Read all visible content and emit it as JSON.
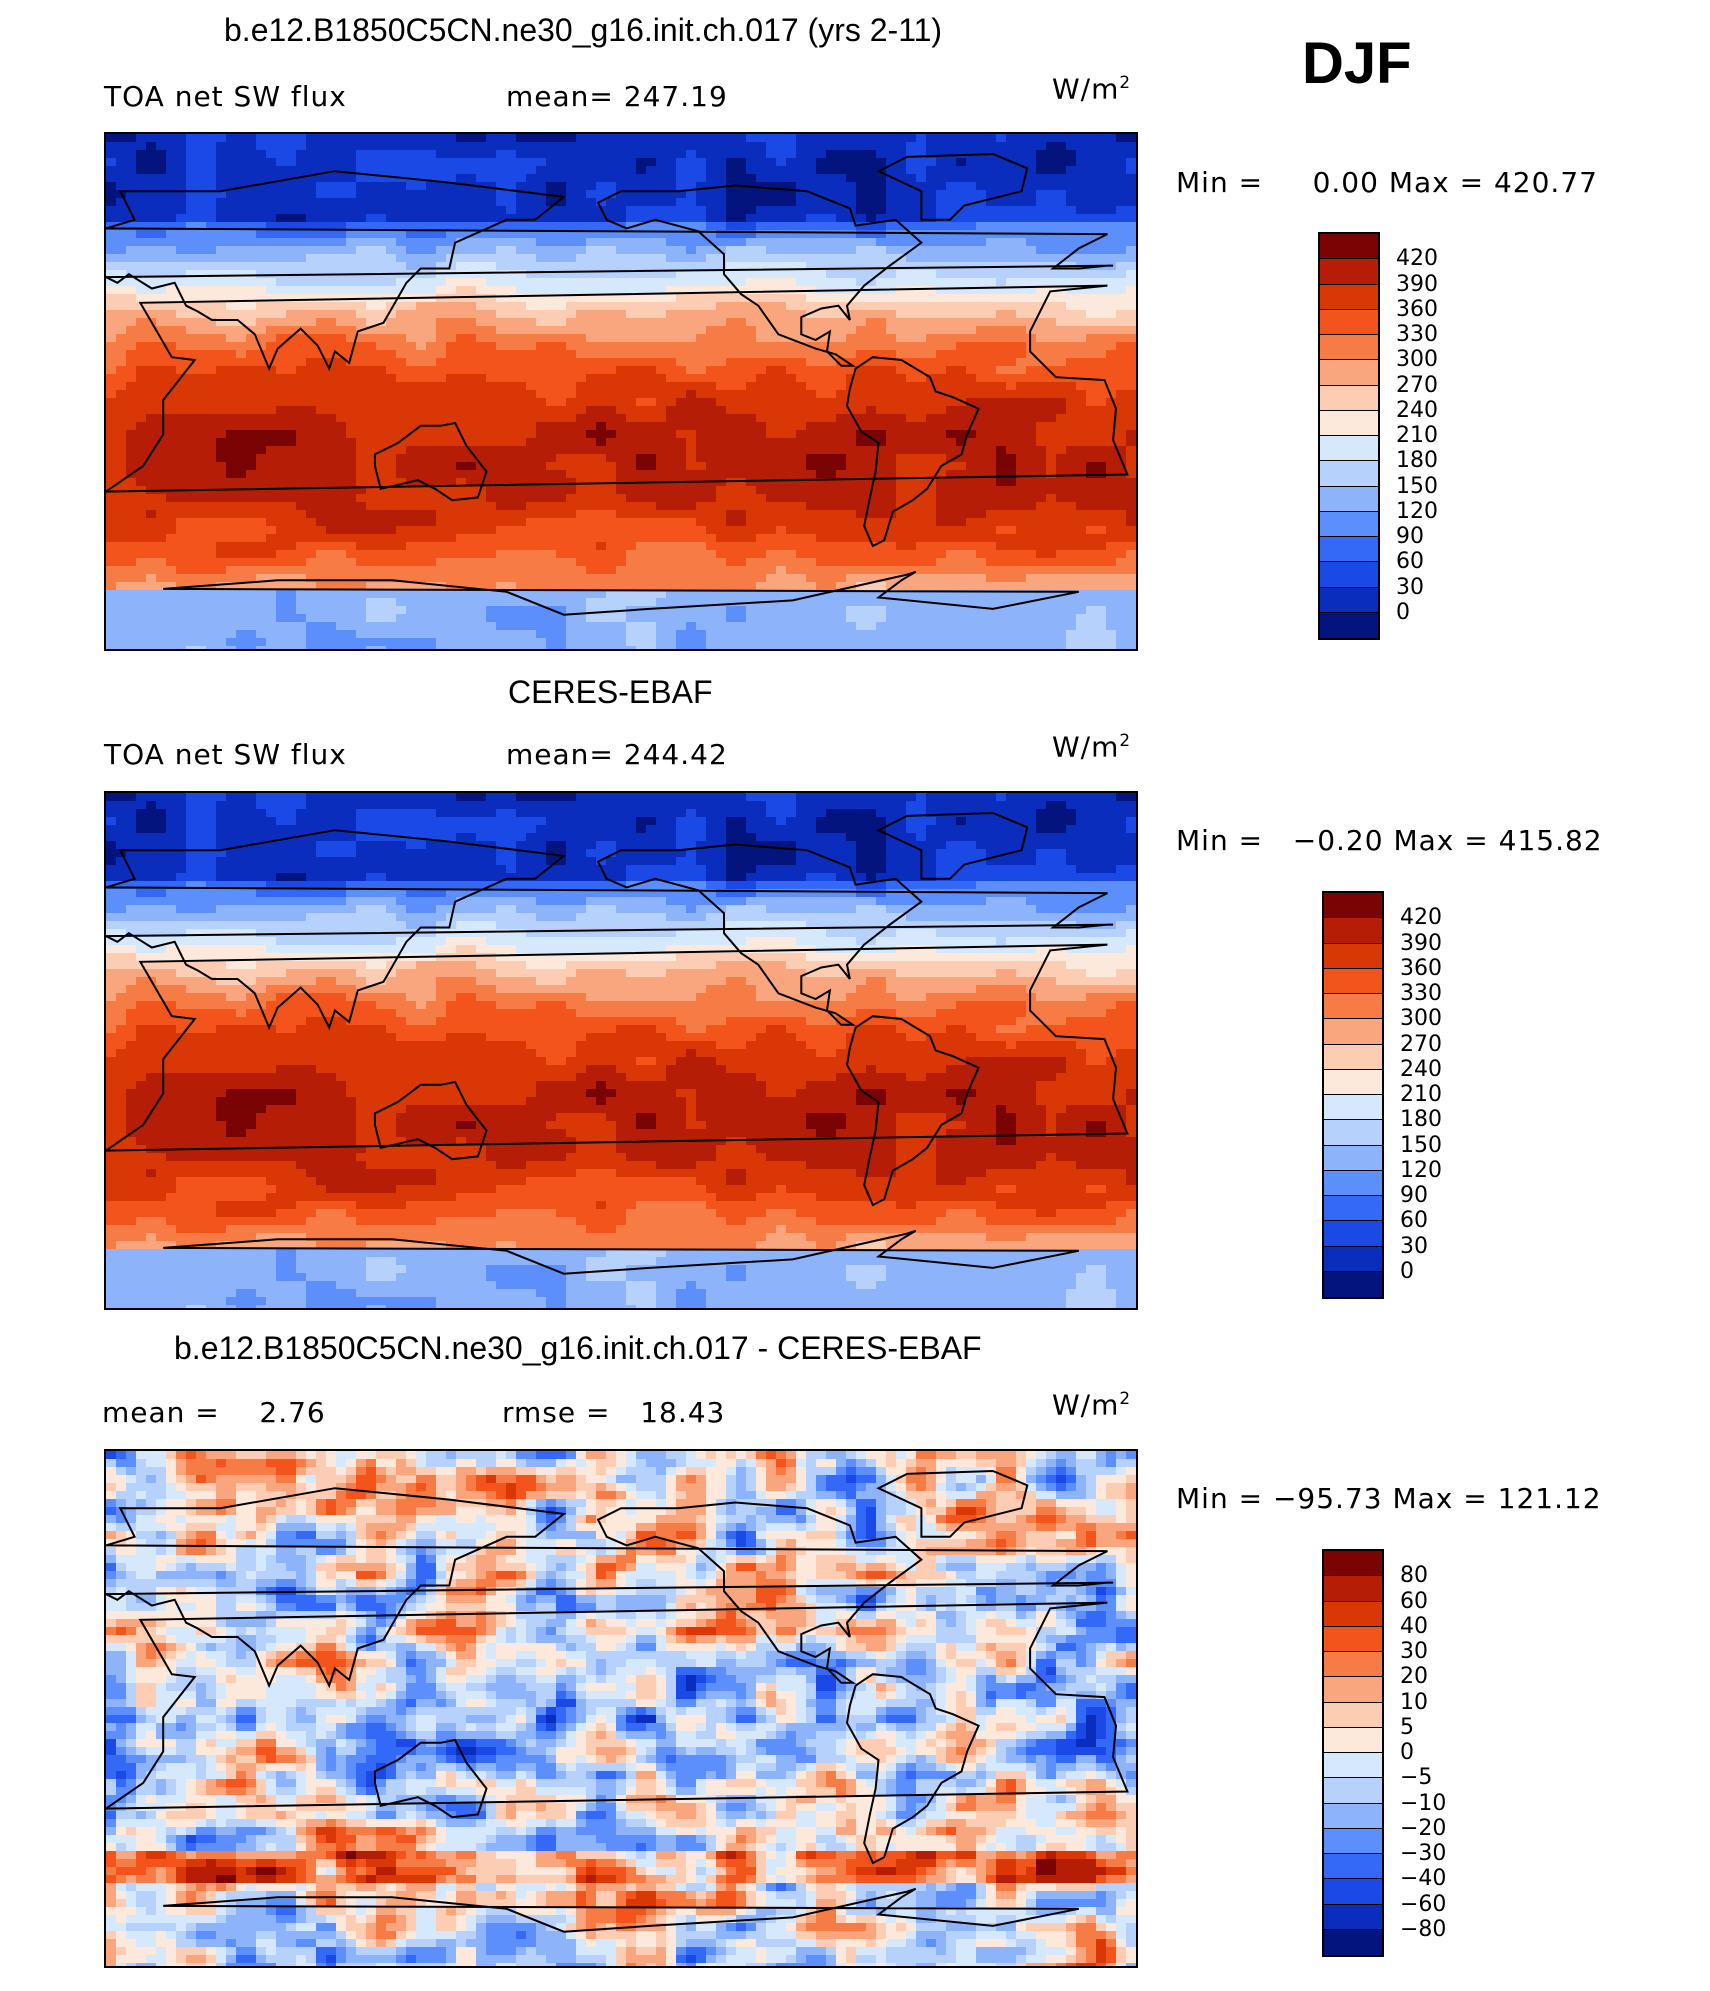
{
  "season": "DJF",
  "units": "W/m",
  "units_sup": "2",
  "panels": [
    {
      "title": "b.e12.B1850C5CN.ne30_g16.init.ch.017 (yrs 2-11)",
      "left_label": "TOA net SW flux",
      "stat_label": "mean=",
      "stat_value": "247.19",
      "range_label": "Min =",
      "min": "0.00",
      "max_label": "Max =",
      "max": "420.77"
    },
    {
      "title": "CERES-EBAF",
      "left_label": "TOA net SW flux",
      "stat_label": "mean=",
      "stat_value": "244.42",
      "range_label": "Min =",
      "min": "−0.20",
      "max_label": "Max =",
      "max": "415.82"
    },
    {
      "title": "b.e12.B1850C5CN.ne30_g16.init.ch.017 - CERES-EBAF",
      "left_label": "mean =",
      "left_value": "2.76",
      "stat_label": "rmse =",
      "stat_value": "18.43",
      "range_label": "Min =",
      "min": "−95.73",
      "max_label": "Max =",
      "max": "121.12"
    }
  ],
  "chart_data": [
    {
      "type": "heatmap",
      "title": "b.e12.B1850C5CN.ne30_g16.init.ch.017 (yrs 2-11)",
      "variable": "TOA net SW flux",
      "mean": 247.19,
      "min": 0.0,
      "max": 420.77,
      "colorbar_levels": [
        420,
        390,
        360,
        330,
        300,
        270,
        240,
        210,
        180,
        150,
        120,
        90,
        60,
        30,
        0
      ],
      "colors": [
        "#7a0403",
        "#b51d07",
        "#d93806",
        "#f2541b",
        "#f77b45",
        "#f9a57e",
        "#fdcdb3",
        "#fde9db",
        "#d6e8fb",
        "#b6d1fb",
        "#8db4fb",
        "#5c8ffb",
        "#3469f7",
        "#1a49e6",
        "#0a2dbd",
        "#03147e"
      ]
    },
    {
      "type": "heatmap",
      "title": "CERES-EBAF",
      "variable": "TOA net SW flux",
      "mean": 244.42,
      "min": -0.2,
      "max": 415.82,
      "colorbar_levels": [
        420,
        390,
        360,
        330,
        300,
        270,
        240,
        210,
        180,
        150,
        120,
        90,
        60,
        30,
        0
      ],
      "colors": [
        "#7a0403",
        "#b51d07",
        "#d93806",
        "#f2541b",
        "#f77b45",
        "#f9a57e",
        "#fdcdb3",
        "#fde9db",
        "#d6e8fb",
        "#b6d1fb",
        "#8db4fb",
        "#5c8ffb",
        "#3469f7",
        "#1a49e6",
        "#0a2dbd",
        "#03147e"
      ]
    },
    {
      "type": "heatmap",
      "title": "b.e12.B1850C5CN.ne30_g16.init.ch.017 - CERES-EBAF",
      "mean": 2.76,
      "rmse": 18.43,
      "min": -95.73,
      "max": 121.12,
      "colorbar_levels": [
        80,
        60,
        40,
        30,
        20,
        10,
        5,
        0,
        -5,
        -10,
        -20,
        -30,
        -40,
        -60,
        -80
      ],
      "colorbar_labels": [
        "80",
        "60",
        "40",
        "30",
        "20",
        "10",
        "5",
        "0",
        "−5",
        "−10",
        "−20",
        "−30",
        "−40",
        "−60",
        "−80"
      ],
      "colors": [
        "#7a0403",
        "#b51d07",
        "#d93806",
        "#f2541b",
        "#f77b45",
        "#f9a57e",
        "#fdcdb3",
        "#fde9db",
        "#d6e8fb",
        "#b6d1fb",
        "#8db4fb",
        "#5c8ffb",
        "#3469f7",
        "#1a49e6",
        "#0a2dbd",
        "#03147e"
      ]
    }
  ]
}
